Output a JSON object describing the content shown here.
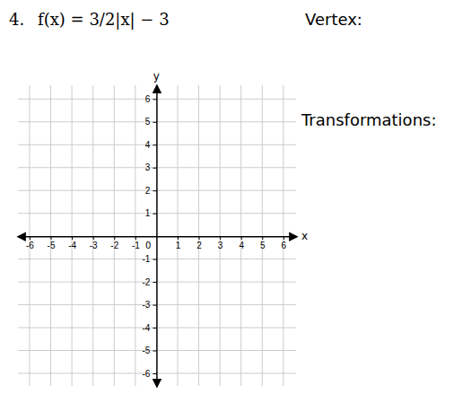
{
  "chart_data": {
    "type": "coordinate_plane",
    "annotations": [
      "4.",
      "f(x) = 3/2|x| − 3",
      "Vertex:",
      "Transformations:",
      "0"
    ],
    "x_label": "x",
    "y_label": "y",
    "xlim": [
      -6.55,
      6.6
    ],
    "ylim": [
      -6.55,
      6.6
    ],
    "xticks": [
      -6,
      -5,
      -4,
      -3,
      -2,
      -1,
      1,
      2,
      3,
      4,
      5,
      6
    ],
    "yticks": [
      -6,
      -5,
      -4,
      -3,
      -2,
      -1,
      1,
      2,
      3,
      4,
      5,
      6
    ],
    "grid": true
  }
}
